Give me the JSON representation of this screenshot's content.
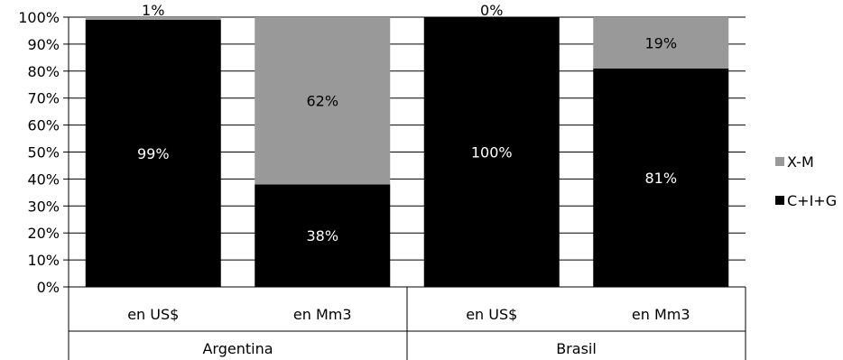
{
  "chart_data": {
    "type": "bar",
    "stacked": true,
    "percent_scale": true,
    "groups": [
      "Argentina",
      "Brasil"
    ],
    "categories": [
      "en US$",
      "en Mm3",
      "en US$",
      "en Mm3"
    ],
    "category_group": [
      0,
      0,
      1,
      1
    ],
    "series": [
      {
        "name": "C+I+G",
        "color": "#000000",
        "label_color": "#ffffff",
        "values": [
          99,
          38,
          100,
          81
        ],
        "labels": [
          "99%",
          "38%",
          "100%",
          "81%"
        ]
      },
      {
        "name": "X-M",
        "color": "#999999",
        "label_color": "#000000",
        "values": [
          1,
          62,
          0,
          19
        ],
        "labels": [
          "1%",
          "62%",
          "0%",
          "19%"
        ]
      }
    ],
    "y_ticks": [
      "0%",
      "10%",
      "20%",
      "30%",
      "40%",
      "50%",
      "60%",
      "70%",
      "80%",
      "90%",
      "100%"
    ],
    "ylim": [
      0,
      100
    ],
    "grid": true,
    "legend": {
      "position": "right",
      "order": [
        1,
        0
      ]
    }
  }
}
